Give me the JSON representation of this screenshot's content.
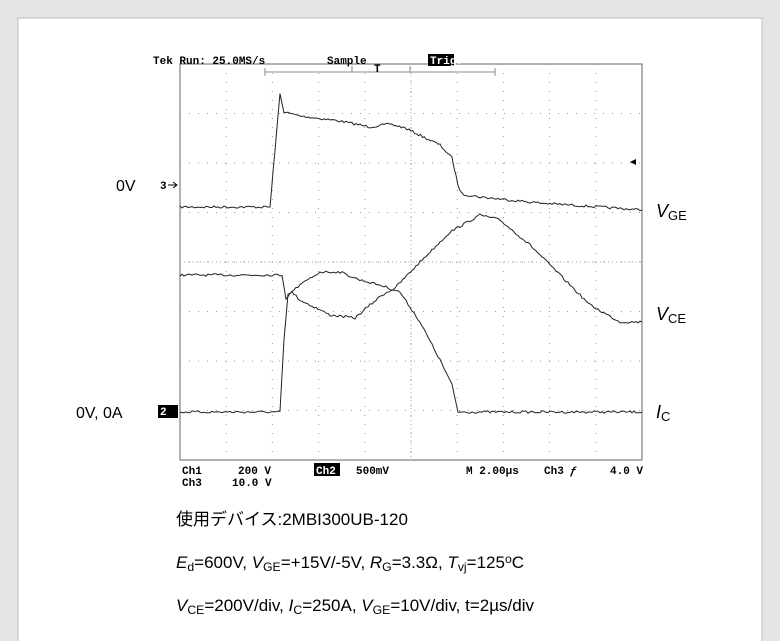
{
  "header": {
    "scope_status": "Tek Run: 25.0MS/s",
    "mode": "Sample",
    "trigger": "Trig?",
    "trigger_marker": "T"
  },
  "markers": {
    "ch3_zero": "0V",
    "ch3_marker": "3",
    "ch2_zero": "0V, 0A",
    "ch2_marker": "2"
  },
  "trace_labels": [
    [
      {
        "text": "V",
        "style": "italic"
      },
      {
        "text": "GE",
        "style": "sub"
      }
    ],
    [
      {
        "text": "V",
        "style": "italic"
      },
      {
        "text": "CE",
        "style": "sub"
      }
    ],
    [
      {
        "text": "I",
        "style": "italic"
      },
      {
        "text": "C",
        "style": "sub"
      }
    ]
  ],
  "footer": {
    "ch1": "Ch1",
    "ch1_scale": "200 V",
    "ch2": "Ch2",
    "ch2_scale": "500mV",
    "timebase": "M 2.00µs",
    "trigger_source": "Ch3",
    "trigger_slope": "ƒ",
    "trigger_level": "4.0 V",
    "ch3": "Ch3",
    "ch3_scale": "10.0 V"
  },
  "captions": [
    [
      {
        "text": "使用デバイス:2MBI300UB-120",
        "style": "normal"
      }
    ],
    [
      {
        "text": "E",
        "style": "italic"
      },
      {
        "text": "d",
        "style": "sub"
      },
      {
        "text": "=600V, ",
        "style": "normal"
      },
      {
        "text": "V",
        "style": "italic"
      },
      {
        "text": "GE",
        "style": "sub"
      },
      {
        "text": "=+15V/-5V, ",
        "style": "normal"
      },
      {
        "text": "R",
        "style": "italic"
      },
      {
        "text": "G",
        "style": "sub"
      },
      {
        "text": "=3.3Ω, ",
        "style": "normal"
      },
      {
        "text": "T",
        "style": "italic"
      },
      {
        "text": "vj",
        "style": "sub"
      },
      {
        "text": "=125",
        "style": "normal"
      },
      {
        "text": "o",
        "style": "sup"
      },
      {
        "text": "C",
        "style": "normal"
      }
    ],
    [
      {
        "text": "V",
        "style": "italic"
      },
      {
        "text": "CE",
        "style": "sub"
      },
      {
        "text": "=200V/div, ",
        "style": "normal"
      },
      {
        "text": "I",
        "style": "italic"
      },
      {
        "text": "C",
        "style": "sub"
      },
      {
        "text": "=250A, ",
        "style": "normal"
      },
      {
        "text": "V",
        "style": "italic"
      },
      {
        "text": "GE",
        "style": "sub"
      },
      {
        "text": "=10V/div, t=2µs/div",
        "style": "normal"
      }
    ]
  ]
}
